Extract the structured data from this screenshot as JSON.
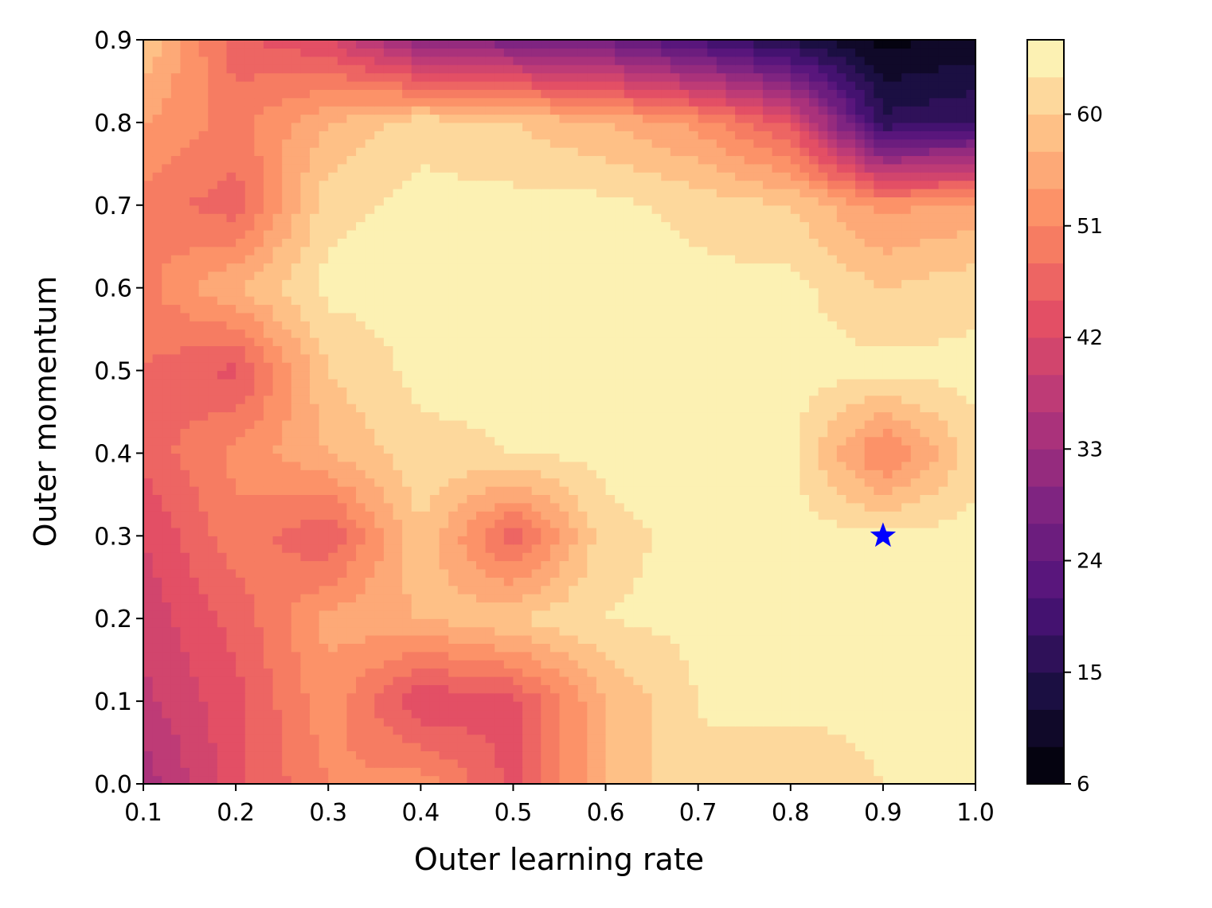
{
  "chart_data": {
    "type": "heatmap",
    "style": "filled-contour",
    "colormap": "magma",
    "title": "",
    "xlabel": "Outer learning rate",
    "ylabel": "Outer momentum",
    "x": [
      0.1,
      0.2,
      0.3,
      0.4,
      0.5,
      0.6,
      0.7,
      0.8,
      0.9,
      1.0
    ],
    "y": [
      0.0,
      0.1,
      0.2,
      0.3,
      0.4,
      0.5,
      0.6,
      0.7,
      0.8,
      0.9
    ],
    "xlim": [
      0.1,
      1.0
    ],
    "ylim": [
      0.0,
      0.9
    ],
    "xticks": [
      "0.1",
      "0.2",
      "0.3",
      "0.4",
      "0.5",
      "0.6",
      "0.7",
      "0.8",
      "0.9",
      "1.0"
    ],
    "yticks": [
      "0.0",
      "0.1",
      "0.2",
      "0.3",
      "0.4",
      "0.5",
      "0.6",
      "0.7",
      "0.8",
      "0.9"
    ],
    "z": [
      [
        34,
        44,
        51,
        53,
        44,
        57,
        63,
        60,
        63,
        64
      ],
      [
        38,
        44,
        53,
        42,
        44,
        57,
        63,
        64,
        64,
        64
      ],
      [
        40,
        46,
        55,
        57,
        60,
        63,
        64,
        64,
        64,
        64
      ],
      [
        42,
        50,
        45,
        60,
        46,
        62,
        64,
        64,
        64,
        64
      ],
      [
        46,
        52,
        57,
        62,
        63,
        64,
        64,
        64,
        50,
        62
      ],
      [
        48,
        44,
        60,
        64,
        64,
        64,
        64,
        64,
        64,
        64
      ],
      [
        50,
        57,
        64,
        64,
        64,
        64,
        64,
        64,
        60,
        62
      ],
      [
        50,
        46,
        62,
        64,
        64,
        64,
        62,
        60,
        53,
        55
      ],
      [
        54,
        50,
        57,
        62,
        60,
        57,
        53,
        44,
        16,
        18
      ],
      [
        60,
        46,
        42,
        30,
        28,
        26,
        20,
        14,
        8,
        10
      ]
    ],
    "levels_min": 6,
    "levels_max": 66,
    "level_step": 3,
    "colorbar": {
      "ticks": [
        6,
        15,
        24,
        33,
        42,
        51,
        60
      ],
      "tick_labels": [
        "6",
        "15",
        "24",
        "33",
        "42",
        "51",
        "60"
      ],
      "range": [
        6,
        66
      ]
    },
    "markers": [
      {
        "x": 0.9,
        "y": 0.3,
        "shape": "star",
        "color": "#0000ff",
        "icon": "star-marker-icon"
      }
    ]
  }
}
